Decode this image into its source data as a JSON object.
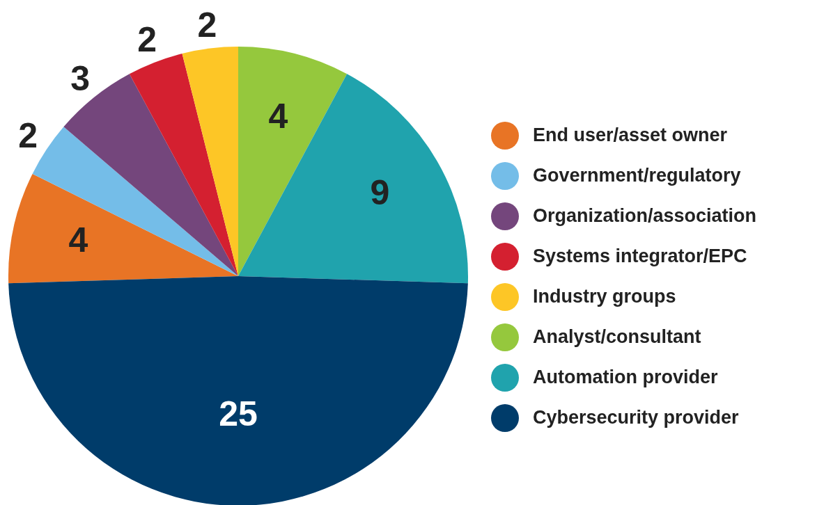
{
  "chart_data": {
    "type": "pie",
    "categories": [
      "End user/asset owner",
      "Government/regulatory",
      "Organization/association",
      "Systems integrator/EPC",
      "Industry groups",
      "Analyst/consultant",
      "Automation provider",
      "Cybersecurity provider"
    ],
    "values": [
      4,
      2,
      3,
      2,
      2,
      4,
      9,
      25
    ],
    "colors": [
      "#e87425",
      "#74bde8",
      "#74467c",
      "#d42030",
      "#fdc626",
      "#95c83d",
      "#20a3ad",
      "#003c6a"
    ],
    "data_labels": true,
    "legend": "right"
  }
}
